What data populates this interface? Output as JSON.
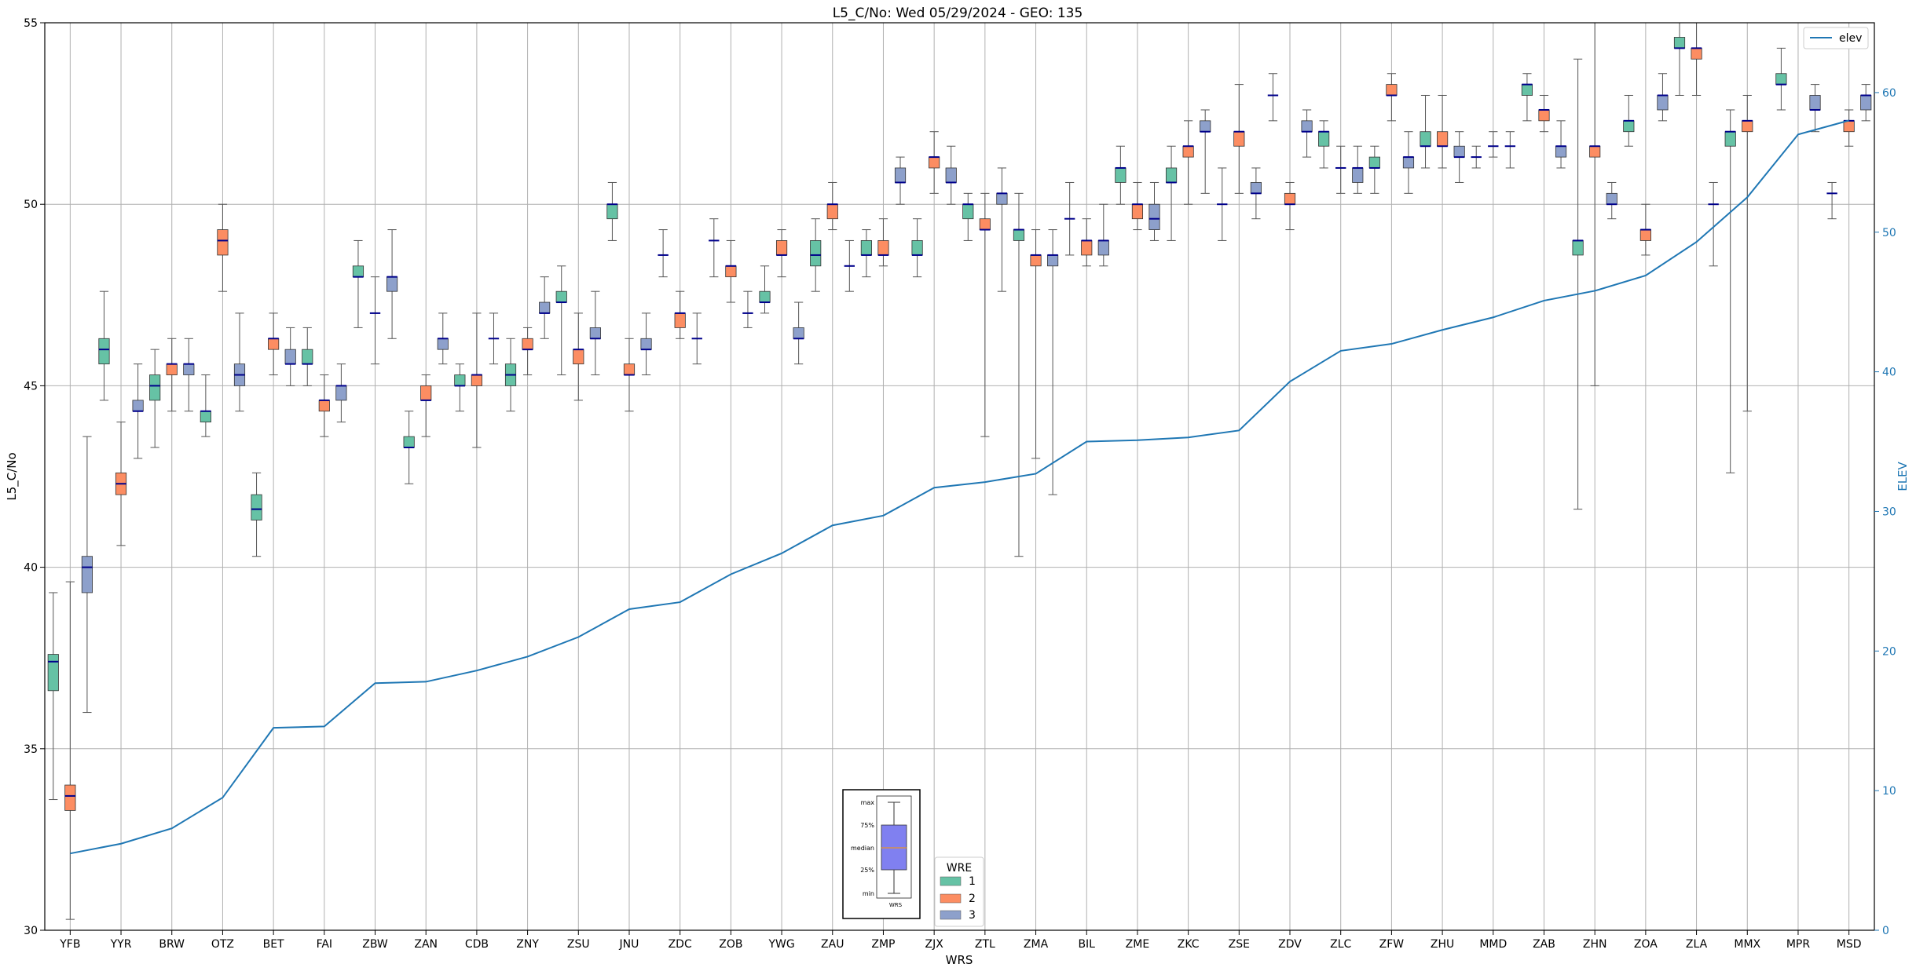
{
  "chart_data": {
    "type": "box",
    "title": "L5_C/No: Wed 05/29/2024 - GEO: 135",
    "xlabel": "WRS",
    "ylabel": "L5_C/No",
    "y2label": "ELEV",
    "ylim": [
      30,
      55
    ],
    "y2lim": [
      0,
      65
    ],
    "yticks": [
      30,
      35,
      40,
      45,
      50,
      55
    ],
    "y2ticks": [
      0,
      10,
      20,
      30,
      40,
      50,
      60
    ],
    "grid": true,
    "categories": [
      "YFB",
      "YYR",
      "BRW",
      "OTZ",
      "BET",
      "FAI",
      "ZBW",
      "ZAN",
      "CDB",
      "ZNY",
      "ZSU",
      "JNU",
      "ZDC",
      "ZOB",
      "YWG",
      "ZAU",
      "ZMP",
      "ZJX",
      "ZTL",
      "ZMA",
      "BIL",
      "ZME",
      "ZKC",
      "ZSE",
      "ZDV",
      "ZLC",
      "ZFW",
      "ZHU",
      "MMD",
      "ZAB",
      "ZHN",
      "ZOA",
      "ZLA",
      "MMX",
      "MPR",
      "MSD"
    ],
    "colors": {
      "1": "#66c2a5",
      "2": "#fc8d62",
      "3": "#8da0cb",
      "median": "#00008b",
      "whisker_single": "#d62728",
      "whisker_multi": "#555555",
      "elev": "#1f77b4",
      "grid": "#b0b0b0"
    },
    "wre_legend": {
      "title": "WRE",
      "items": [
        "1",
        "2",
        "3"
      ]
    },
    "key_box": {
      "labels": [
        "max",
        "75%",
        "median",
        "25%",
        "min"
      ],
      "xlabel": "WRS",
      "fill": "#8080f0"
    },
    "elev_legend": {
      "label": "elev"
    },
    "legend_placement": "top-right",
    "boxes": [
      {
        "wrs": "YFB",
        "wre": "1",
        "min": 33.6,
        "q1": 36.6,
        "median": 37.4,
        "q3": 37.6,
        "max": 39.3
      },
      {
        "wrs": "YFB",
        "wre": "2",
        "min": 30.3,
        "q1": 33.3,
        "median": 33.7,
        "q3": 34.0,
        "max": 39.6
      },
      {
        "wrs": "YFB",
        "wre": "3",
        "min": 36.0,
        "q1": 39.3,
        "median": 40.0,
        "q3": 40.3,
        "max": 43.6
      },
      {
        "wrs": "YYR",
        "wre": "1",
        "min": 44.6,
        "q1": 45.6,
        "median": 46.0,
        "q3": 46.3,
        "max": 47.6
      },
      {
        "wrs": "YYR",
        "wre": "2",
        "min": 40.6,
        "q1": 42.0,
        "median": 42.3,
        "q3": 42.6,
        "max": 44.0
      },
      {
        "wrs": "YYR",
        "wre": "3",
        "min": 43.0,
        "q1": 44.3,
        "median": 44.3,
        "q3": 44.6,
        "max": 45.6
      },
      {
        "wrs": "BRW",
        "wre": "1",
        "min": 43.3,
        "q1": 44.6,
        "median": 45.0,
        "q3": 45.3,
        "max": 46.0
      },
      {
        "wrs": "BRW",
        "wre": "2",
        "min": 44.3,
        "q1": 45.3,
        "median": 45.6,
        "q3": 45.6,
        "max": 46.3
      },
      {
        "wrs": "BRW",
        "wre": "3",
        "min": 44.3,
        "q1": 45.3,
        "median": 45.6,
        "q3": 45.6,
        "max": 46.3
      },
      {
        "wrs": "OTZ",
        "wre": "1",
        "min": 43.6,
        "q1": 44.0,
        "median": 44.3,
        "q3": 44.3,
        "max": 45.3
      },
      {
        "wrs": "OTZ",
        "wre": "2",
        "min": 47.6,
        "q1": 48.6,
        "median": 49.0,
        "q3": 49.3,
        "max": 50.0
      },
      {
        "wrs": "OTZ",
        "wre": "3",
        "min": 44.3,
        "q1": 45.0,
        "median": 45.3,
        "q3": 45.6,
        "max": 47.0
      },
      {
        "wrs": "BET",
        "wre": "1",
        "min": 40.3,
        "q1": 41.3,
        "median": 41.6,
        "q3": 42.0,
        "max": 42.6
      },
      {
        "wrs": "BET",
        "wre": "2",
        "min": 45.3,
        "q1": 46.0,
        "median": 46.3,
        "q3": 46.3,
        "max": 47.0
      },
      {
        "wrs": "BET",
        "wre": "3",
        "min": 45.0,
        "q1": 45.6,
        "median": 45.6,
        "q3": 46.0,
        "max": 46.6
      },
      {
        "wrs": "FAI",
        "wre": "1",
        "min": 45.0,
        "q1": 45.6,
        "median": 45.6,
        "q3": 46.0,
        "max": 46.6
      },
      {
        "wrs": "FAI",
        "wre": "2",
        "min": 43.6,
        "q1": 44.3,
        "median": 44.6,
        "q3": 44.6,
        "max": 45.3
      },
      {
        "wrs": "FAI",
        "wre": "3",
        "min": 44.0,
        "q1": 44.6,
        "median": 45.0,
        "q3": 45.0,
        "max": 45.6
      },
      {
        "wrs": "ZBW",
        "wre": "1",
        "min": 46.6,
        "q1": 48.0,
        "median": 48.0,
        "q3": 48.3,
        "max": 49.0
      },
      {
        "wrs": "ZBW",
        "wre": "2",
        "min": 45.6,
        "q1": 47.0,
        "median": 47.0,
        "q3": 47.0,
        "max": 48.0
      },
      {
        "wrs": "ZBW",
        "wre": "3",
        "min": 46.3,
        "q1": 47.6,
        "median": 48.0,
        "q3": 48.0,
        "max": 49.3
      },
      {
        "wrs": "ZAN",
        "wre": "1",
        "min": 42.3,
        "q1": 43.3,
        "median": 43.3,
        "q3": 43.6,
        "max": 44.3
      },
      {
        "wrs": "ZAN",
        "wre": "2",
        "min": 43.6,
        "q1": 44.6,
        "median": 44.6,
        "q3": 45.0,
        "max": 45.3
      },
      {
        "wrs": "ZAN",
        "wre": "3",
        "min": 45.6,
        "q1": 46.0,
        "median": 46.3,
        "q3": 46.3,
        "max": 47.0
      },
      {
        "wrs": "CDB",
        "wre": "1",
        "min": 44.3,
        "q1": 45.0,
        "median": 45.0,
        "q3": 45.3,
        "max": 45.6
      },
      {
        "wrs": "CDB",
        "wre": "2",
        "min": 43.3,
        "q1": 45.0,
        "median": 45.3,
        "q3": 45.3,
        "max": 47.0
      },
      {
        "wrs": "CDB",
        "wre": "3",
        "min": 45.6,
        "q1": 46.3,
        "median": 46.3,
        "q3": 46.3,
        "max": 47.0
      },
      {
        "wrs": "ZNY",
        "wre": "1",
        "min": 44.3,
        "q1": 45.0,
        "median": 45.3,
        "q3": 45.6,
        "max": 46.3
      },
      {
        "wrs": "ZNY",
        "wre": "2",
        "min": 45.3,
        "q1": 46.0,
        "median": 46.0,
        "q3": 46.3,
        "max": 46.6
      },
      {
        "wrs": "ZNY",
        "wre": "3",
        "min": 46.3,
        "q1": 47.0,
        "median": 47.0,
        "q3": 47.3,
        "max": 48.0
      },
      {
        "wrs": "ZSU",
        "wre": "1",
        "min": 45.3,
        "q1": 47.3,
        "median": 47.3,
        "q3": 47.6,
        "max": 48.3
      },
      {
        "wrs": "ZSU",
        "wre": "2",
        "min": 44.6,
        "q1": 45.6,
        "median": 46.0,
        "q3": 46.0,
        "max": 47.0
      },
      {
        "wrs": "ZSU",
        "wre": "3",
        "min": 45.3,
        "q1": 46.3,
        "median": 46.3,
        "q3": 46.6,
        "max": 47.6
      },
      {
        "wrs": "JNU",
        "wre": "1",
        "min": 49.0,
        "q1": 49.6,
        "median": 50.0,
        "q3": 50.0,
        "max": 50.6
      },
      {
        "wrs": "JNU",
        "wre": "2",
        "min": 44.3,
        "q1": 45.3,
        "median": 45.3,
        "q3": 45.6,
        "max": 46.3
      },
      {
        "wrs": "JNU",
        "wre": "3",
        "min": 45.3,
        "q1": 46.0,
        "median": 46.0,
        "q3": 46.3,
        "max": 47.0
      },
      {
        "wrs": "ZDC",
        "wre": "1",
        "min": 48.0,
        "q1": 48.6,
        "median": 48.6,
        "q3": 48.6,
        "max": 49.3
      },
      {
        "wrs": "ZDC",
        "wre": "2",
        "min": 46.3,
        "q1": 46.6,
        "median": 47.0,
        "q3": 47.0,
        "max": 47.6
      },
      {
        "wrs": "ZDC",
        "wre": "3",
        "min": 45.6,
        "q1": 46.3,
        "median": 46.3,
        "q3": 46.3,
        "max": 47.0
      },
      {
        "wrs": "ZOB",
        "wre": "1",
        "min": 48.0,
        "q1": 49.0,
        "median": 49.0,
        "q3": 49.0,
        "max": 49.6
      },
      {
        "wrs": "ZOB",
        "wre": "2",
        "min": 47.3,
        "q1": 48.0,
        "median": 48.3,
        "q3": 48.3,
        "max": 49.0
      },
      {
        "wrs": "ZOB",
        "wre": "3",
        "min": 46.6,
        "q1": 47.0,
        "median": 47.0,
        "q3": 47.0,
        "max": 47.6
      },
      {
        "wrs": "YWG",
        "wre": "1",
        "min": 47.0,
        "q1": 47.3,
        "median": 47.3,
        "q3": 47.6,
        "max": 48.3
      },
      {
        "wrs": "YWG",
        "wre": "2",
        "min": 48.0,
        "q1": 48.6,
        "median": 48.6,
        "q3": 49.0,
        "max": 49.3
      },
      {
        "wrs": "YWG",
        "wre": "3",
        "min": 45.6,
        "q1": 46.3,
        "median": 46.3,
        "q3": 46.6,
        "max": 47.3
      },
      {
        "wrs": "ZAU",
        "wre": "1",
        "min": 47.6,
        "q1": 48.3,
        "median": 48.6,
        "q3": 49.0,
        "max": 49.6
      },
      {
        "wrs": "ZAU",
        "wre": "2",
        "min": 49.3,
        "q1": 49.6,
        "median": 50.0,
        "q3": 50.0,
        "max": 50.6
      },
      {
        "wrs": "ZAU",
        "wre": "3",
        "min": 47.6,
        "q1": 48.3,
        "median": 48.3,
        "q3": 48.3,
        "max": 49.0
      },
      {
        "wrs": "ZMP",
        "wre": "1",
        "min": 48.0,
        "q1": 48.6,
        "median": 48.6,
        "q3": 49.0,
        "max": 49.3
      },
      {
        "wrs": "ZMP",
        "wre": "2",
        "min": 48.3,
        "q1": 48.6,
        "median": 48.6,
        "q3": 49.0,
        "max": 49.6
      },
      {
        "wrs": "ZMP",
        "wre": "3",
        "min": 50.0,
        "q1": 50.6,
        "median": 50.6,
        "q3": 51.0,
        "max": 51.3
      },
      {
        "wrs": "ZJX",
        "wre": "1",
        "min": 48.0,
        "q1": 48.6,
        "median": 48.6,
        "q3": 49.0,
        "max": 49.6
      },
      {
        "wrs": "ZJX",
        "wre": "2",
        "min": 50.3,
        "q1": 51.0,
        "median": 51.3,
        "q3": 51.3,
        "max": 52.0
      },
      {
        "wrs": "ZJX",
        "wre": "3",
        "min": 50.0,
        "q1": 50.6,
        "median": 50.6,
        "q3": 51.0,
        "max": 51.6
      },
      {
        "wrs": "ZTL",
        "wre": "1",
        "min": 49.0,
        "q1": 49.6,
        "median": 50.0,
        "q3": 50.0,
        "max": 50.3
      },
      {
        "wrs": "ZTL",
        "wre": "2",
        "min": 43.6,
        "q1": 49.3,
        "median": 49.3,
        "q3": 49.6,
        "max": 50.3
      },
      {
        "wrs": "ZTL",
        "wre": "3",
        "min": 47.6,
        "q1": 50.0,
        "median": 50.3,
        "q3": 50.3,
        "max": 51.0
      },
      {
        "wrs": "ZMA",
        "wre": "1",
        "min": 40.3,
        "q1": 49.0,
        "median": 49.3,
        "q3": 49.3,
        "max": 50.3
      },
      {
        "wrs": "ZMA",
        "wre": "2",
        "min": 43.0,
        "q1": 48.3,
        "median": 48.6,
        "q3": 48.6,
        "max": 49.3
      },
      {
        "wrs": "ZMA",
        "wre": "3",
        "min": 42.0,
        "q1": 48.3,
        "median": 48.6,
        "q3": 48.6,
        "max": 49.3
      },
      {
        "wrs": "BIL",
        "wre": "1",
        "min": 48.6,
        "q1": 49.6,
        "median": 49.6,
        "q3": 49.6,
        "max": 50.6
      },
      {
        "wrs": "BIL",
        "wre": "2",
        "min": 48.3,
        "q1": 48.6,
        "median": 49.0,
        "q3": 49.0,
        "max": 49.6
      },
      {
        "wrs": "BIL",
        "wre": "3",
        "min": 48.3,
        "q1": 48.6,
        "median": 49.0,
        "q3": 49.0,
        "max": 50.0
      },
      {
        "wrs": "ZME",
        "wre": "1",
        "min": 50.0,
        "q1": 50.6,
        "median": 51.0,
        "q3": 51.0,
        "max": 51.6
      },
      {
        "wrs": "ZME",
        "wre": "2",
        "min": 49.3,
        "q1": 49.6,
        "median": 50.0,
        "q3": 50.0,
        "max": 50.6
      },
      {
        "wrs": "ZME",
        "wre": "3",
        "min": 49.0,
        "q1": 49.3,
        "median": 49.6,
        "q3": 50.0,
        "max": 50.6
      },
      {
        "wrs": "ZKC",
        "wre": "1",
        "min": 49.0,
        "q1": 50.6,
        "median": 50.6,
        "q3": 51.0,
        "max": 51.6
      },
      {
        "wrs": "ZKC",
        "wre": "2",
        "min": 50.0,
        "q1": 51.3,
        "median": 51.6,
        "q3": 51.6,
        "max": 52.3
      },
      {
        "wrs": "ZKC",
        "wre": "3",
        "min": 50.3,
        "q1": 52.0,
        "median": 52.0,
        "q3": 52.3,
        "max": 52.6
      },
      {
        "wrs": "ZSE",
        "wre": "1",
        "min": 49.0,
        "q1": 50.0,
        "median": 50.0,
        "q3": 50.0,
        "max": 51.0
      },
      {
        "wrs": "ZSE",
        "wre": "2",
        "min": 50.3,
        "q1": 51.6,
        "median": 52.0,
        "q3": 52.0,
        "max": 53.3
      },
      {
        "wrs": "ZSE",
        "wre": "3",
        "min": 49.6,
        "q1": 50.3,
        "median": 50.3,
        "q3": 50.6,
        "max": 51.0
      },
      {
        "wrs": "ZDV",
        "wre": "1",
        "min": 52.3,
        "q1": 53.0,
        "median": 53.0,
        "q3": 53.0,
        "max": 53.6
      },
      {
        "wrs": "ZDV",
        "wre": "2",
        "min": 49.3,
        "q1": 50.0,
        "median": 50.0,
        "q3": 50.3,
        "max": 50.6
      },
      {
        "wrs": "ZDV",
        "wre": "3",
        "min": 51.3,
        "q1": 52.0,
        "median": 52.0,
        "q3": 52.3,
        "max": 52.6
      },
      {
        "wrs": "ZLC",
        "wre": "1",
        "min": 51.0,
        "q1": 51.6,
        "median": 52.0,
        "q3": 52.0,
        "max": 52.3
      },
      {
        "wrs": "ZLC",
        "wre": "2",
        "min": 50.3,
        "q1": 51.0,
        "median": 51.0,
        "q3": 51.0,
        "max": 51.6
      },
      {
        "wrs": "ZLC",
        "wre": "3",
        "min": 50.3,
        "q1": 50.6,
        "median": 51.0,
        "q3": 51.0,
        "max": 51.6
      },
      {
        "wrs": "ZFW",
        "wre": "1",
        "min": 50.3,
        "q1": 51.0,
        "median": 51.0,
        "q3": 51.3,
        "max": 51.6
      },
      {
        "wrs": "ZFW",
        "wre": "2",
        "min": 52.3,
        "q1": 53.0,
        "median": 53.0,
        "q3": 53.3,
        "max": 53.6
      },
      {
        "wrs": "ZFW",
        "wre": "3",
        "min": 50.3,
        "q1": 51.0,
        "median": 51.3,
        "q3": 51.3,
        "max": 52.0
      },
      {
        "wrs": "ZHU",
        "wre": "1",
        "min": 51.0,
        "q1": 51.6,
        "median": 51.6,
        "q3": 52.0,
        "max": 53.0
      },
      {
        "wrs": "ZHU",
        "wre": "2",
        "min": 51.0,
        "q1": 51.6,
        "median": 51.6,
        "q3": 52.0,
        "max": 53.0
      },
      {
        "wrs": "ZHU",
        "wre": "3",
        "min": 50.6,
        "q1": 51.3,
        "median": 51.3,
        "q3": 51.6,
        "max": 52.0
      },
      {
        "wrs": "MMD",
        "wre": "1",
        "min": 51.0,
        "q1": 51.3,
        "median": 51.3,
        "q3": 51.3,
        "max": 51.6
      },
      {
        "wrs": "MMD",
        "wre": "2",
        "min": 51.3,
        "q1": 51.6,
        "median": 51.6,
        "q3": 51.6,
        "max": 52.0
      },
      {
        "wrs": "MMD",
        "wre": "3",
        "min": 51.0,
        "q1": 51.6,
        "median": 51.6,
        "q3": 51.6,
        "max": 52.0
      },
      {
        "wrs": "ZAB",
        "wre": "1",
        "min": 52.3,
        "q1": 53.0,
        "median": 53.3,
        "q3": 53.3,
        "max": 53.6
      },
      {
        "wrs": "ZAB",
        "wre": "2",
        "min": 52.0,
        "q1": 52.3,
        "median": 52.6,
        "q3": 52.6,
        "max": 53.0
      },
      {
        "wrs": "ZAB",
        "wre": "3",
        "min": 51.0,
        "q1": 51.3,
        "median": 51.6,
        "q3": 51.6,
        "max": 52.3
      },
      {
        "wrs": "ZHN",
        "wre": "1",
        "min": 41.6,
        "q1": 48.6,
        "median": 49.0,
        "q3": 49.0,
        "max": 54.0
      },
      {
        "wrs": "ZHN",
        "wre": "2",
        "min": 45.0,
        "q1": 51.3,
        "median": 51.6,
        "q3": 51.6,
        "max": 55.0
      },
      {
        "wrs": "ZHN",
        "wre": "3",
        "min": 49.6,
        "q1": 50.0,
        "median": 50.0,
        "q3": 50.3,
        "max": 50.6
      },
      {
        "wrs": "ZOA",
        "wre": "1",
        "min": 51.6,
        "q1": 52.0,
        "median": 52.3,
        "q3": 52.3,
        "max": 53.0
      },
      {
        "wrs": "ZOA",
        "wre": "2",
        "min": 48.6,
        "q1": 49.0,
        "median": 49.3,
        "q3": 49.3,
        "max": 50.0
      },
      {
        "wrs": "ZOA",
        "wre": "3",
        "min": 52.3,
        "q1": 52.6,
        "median": 53.0,
        "q3": 53.0,
        "max": 53.6
      },
      {
        "wrs": "ZLA",
        "wre": "1",
        "min": 53.0,
        "q1": 54.3,
        "median": 54.3,
        "q3": 54.6,
        "max": 55.0
      },
      {
        "wrs": "ZLA",
        "wre": "2",
        "min": 53.0,
        "q1": 54.0,
        "median": 54.3,
        "q3": 54.3,
        "max": 55.0
      },
      {
        "wrs": "ZLA",
        "wre": "3",
        "min": 48.3,
        "q1": 50.0,
        "median": 50.0,
        "q3": 50.0,
        "max": 50.6
      },
      {
        "wrs": "MMX",
        "wre": "1",
        "min": 42.6,
        "q1": 51.6,
        "median": 52.0,
        "q3": 52.0,
        "max": 52.6
      },
      {
        "wrs": "MMX",
        "wre": "2",
        "min": 44.3,
        "q1": 52.0,
        "median": 52.3,
        "q3": 52.3,
        "max": 53.0
      },
      {
        "wrs": "MMX",
        "wre": "3",
        "min": null,
        "q1": null,
        "median": null,
        "q3": null,
        "max": null
      },
      {
        "wrs": "MPR",
        "wre": "1",
        "min": 52.6,
        "q1": 53.3,
        "median": 53.3,
        "q3": 53.6,
        "max": 54.3
      },
      {
        "wrs": "MPR",
        "wre": "2",
        "min": null,
        "q1": null,
        "median": null,
        "q3": null,
        "max": null
      },
      {
        "wrs": "MPR",
        "wre": "3",
        "min": 52.0,
        "q1": 52.6,
        "median": 52.6,
        "q3": 53.0,
        "max": 53.3
      },
      {
        "wrs": "MSD",
        "wre": "1",
        "min": 49.6,
        "q1": 50.3,
        "median": 50.3,
        "q3": 50.3,
        "max": 50.6
      },
      {
        "wrs": "MSD",
        "wre": "2",
        "min": 51.6,
        "q1": 52.0,
        "median": 52.3,
        "q3": 52.3,
        "max": 52.6
      },
      {
        "wrs": "MSD",
        "wre": "3",
        "min": 52.3,
        "q1": 52.6,
        "median": 53.0,
        "q3": 53.0,
        "max": 53.3
      }
    ],
    "elev": {
      "name": "elev",
      "values": [
        5.5,
        6.2,
        7.3,
        9.5,
        14.5,
        14.6,
        17.7,
        17.8,
        18.6,
        19.6,
        21.0,
        23.0,
        23.5,
        25.5,
        27.0,
        29.0,
        29.7,
        31.7,
        32.1,
        32.7,
        35.0,
        35.1,
        35.3,
        35.8,
        39.3,
        41.5,
        42.0,
        43.0,
        43.9,
        45.1,
        45.8,
        46.9,
        49.3,
        52.5,
        57.0,
        58.0
      ]
    }
  }
}
